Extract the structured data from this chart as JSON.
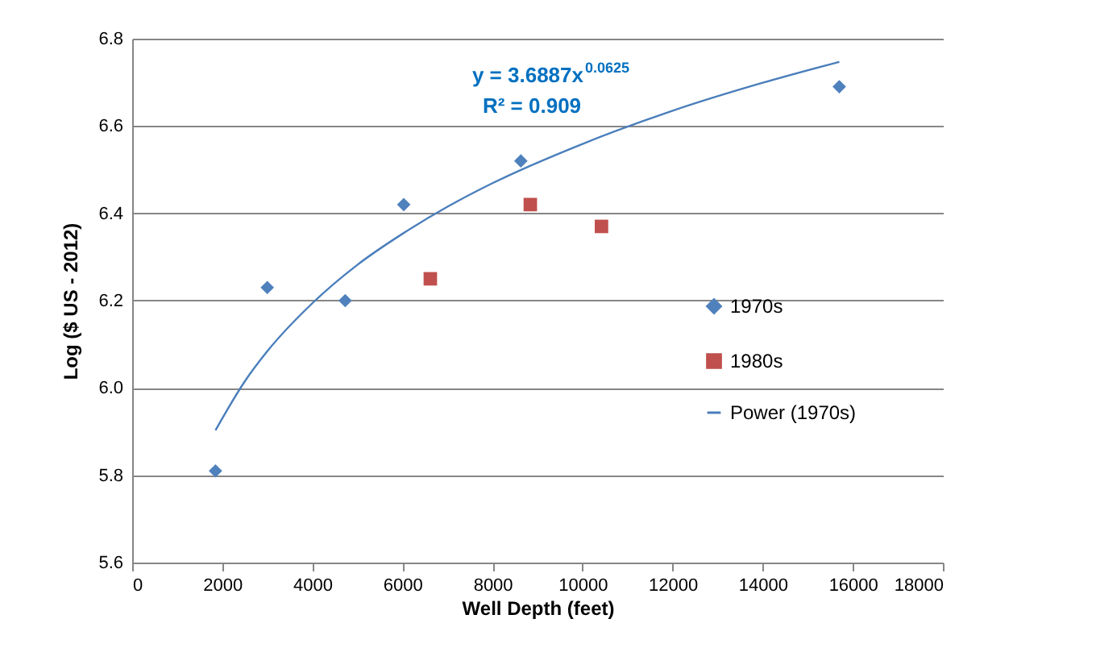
{
  "chart_data": {
    "type": "scatter",
    "xlabel": "Well Depth (feet)",
    "ylabel": "Log ($ US - 2012)",
    "xlim": [
      0,
      18000
    ],
    "xticks": [
      0,
      2000,
      4000,
      6000,
      8000,
      10000,
      12000,
      14000,
      16000,
      18000
    ],
    "ylim": [
      5.6,
      6.8
    ],
    "yticks": [
      5.6,
      5.8,
      {
        "value": 6,
        "label": "6.0"
      },
      6.2,
      6.4,
      6.6,
      6.8
    ],
    "grid": "y",
    "legend": "right",
    "annotations": [
      "y = 3.6887x$^{0.0625}$",
      "R² = 0.909"
    ],
    "series": [
      {
        "name": "1970s",
        "marker": "diamond",
        "color": "#4f81bd",
        "x": [
          1850,
          3000,
          4730,
          6030,
          8630,
          15700
        ],
        "values": [
          5.81,
          6.23,
          6.2,
          6.42,
          6.52,
          6.69
        ]
      },
      {
        "name": "1980s",
        "marker": "square",
        "color": "#c0504d",
        "x": [
          6620,
          8840,
          10420
        ],
        "values": [
          6.25,
          6.42,
          6.37
        ]
      },
      {
        "name": "Power (1970s)",
        "type": "line",
        "marker": "none",
        "color": "#4a7ebb",
        "x": [
          1850,
          2500,
          3000,
          4000,
          5000,
          6000,
          7000,
          8000,
          10000,
          12000,
          14000,
          15700
        ],
        "values": [
          5.903,
          6.015,
          6.084,
          6.194,
          6.282,
          6.353,
          6.415,
          6.469,
          6.559,
          6.635,
          6.699,
          6.747
        ]
      }
    ]
  }
}
